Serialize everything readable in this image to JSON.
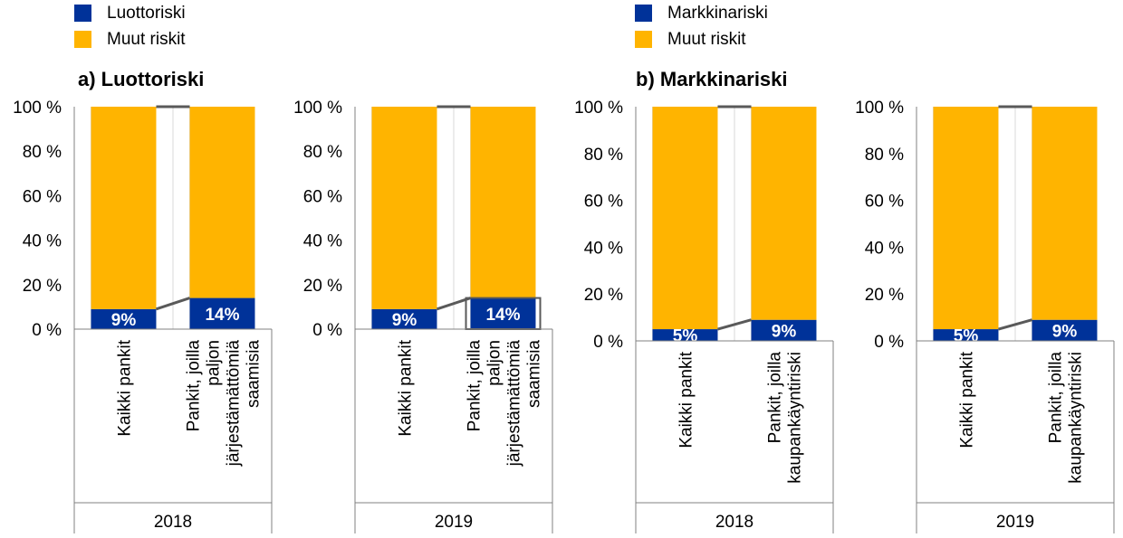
{
  "legends": [
    {
      "items": [
        {
          "label": "Luottoriski",
          "color": "#003299"
        },
        {
          "label": "Muut riskit",
          "color": "#FFB400"
        }
      ]
    },
    {
      "items": [
        {
          "label": "Markkinariski",
          "color": "#003299"
        },
        {
          "label": "Muut riskit",
          "color": "#FFB400"
        }
      ]
    }
  ],
  "panel_titles": {
    "a": "a) Luottoriski",
    "b": "b) Markkinariski"
  },
  "chart_data": [
    {
      "type": "bar",
      "stacked": true,
      "year": "2018",
      "ylim": [
        0,
        100
      ],
      "y_ticks": [
        "0 %",
        "20 %",
        "40 %",
        "60 %",
        "80 %",
        "100 %"
      ],
      "categories": [
        "Kaikki pankit",
        "Pankit, joilla paljon järjestämättömiä saamisia"
      ],
      "series": [
        {
          "name": "Luottoriski",
          "values": [
            9,
            14
          ],
          "labels": [
            "9%",
            "14%"
          ]
        },
        {
          "name": "Muut riskit",
          "values": [
            91,
            86
          ]
        }
      ]
    },
    {
      "type": "bar",
      "stacked": true,
      "year": "2019",
      "ylim": [
        0,
        100
      ],
      "y_ticks": [
        "0 %",
        "20 %",
        "40 %",
        "60 %",
        "80 %",
        "100 %"
      ],
      "categories": [
        "Kaikki pankit",
        "Pankit, joilla paljon järjestämättömiä saamisia"
      ],
      "series": [
        {
          "name": "Luottoriski",
          "values": [
            9,
            14
          ],
          "labels": [
            "9%",
            "14%"
          ]
        },
        {
          "name": "Muut riskit",
          "values": [
            91,
            86
          ]
        }
      ],
      "highlighted_label": "14%"
    },
    {
      "type": "bar",
      "stacked": true,
      "year": "2018",
      "ylim": [
        0,
        100
      ],
      "y_ticks": [
        "0 %",
        "20 %",
        "40 %",
        "60 %",
        "80 %",
        "100 %"
      ],
      "categories": [
        "Kaikki pankit",
        "Pankit, joilla kaupankäyntiriski"
      ],
      "series": [
        {
          "name": "Markkinariski",
          "values": [
            5,
            9
          ],
          "labels": [
            "5%",
            "9%"
          ]
        },
        {
          "name": "Muut riskit",
          "values": [
            95,
            91
          ]
        }
      ]
    },
    {
      "type": "bar",
      "stacked": true,
      "year": "2019",
      "ylim": [
        0,
        100
      ],
      "y_ticks": [
        "0 %",
        "20 %",
        "40 %",
        "60 %",
        "80 %",
        "100 %"
      ],
      "categories": [
        "Kaikki pankit",
        "Pankit, joilla kaupankäyntiriski"
      ],
      "series": [
        {
          "name": "Markkinariski",
          "values": [
            5,
            9
          ],
          "labels": [
            "5%",
            "9%"
          ]
        },
        {
          "name": "Muut riskit",
          "values": [
            95,
            91
          ]
        }
      ]
    }
  ],
  "colors": {
    "primary": "#003299",
    "other": "#FFB400",
    "connector": "#595959",
    "grid": "#D9D9D9",
    "axis": "#808080"
  }
}
